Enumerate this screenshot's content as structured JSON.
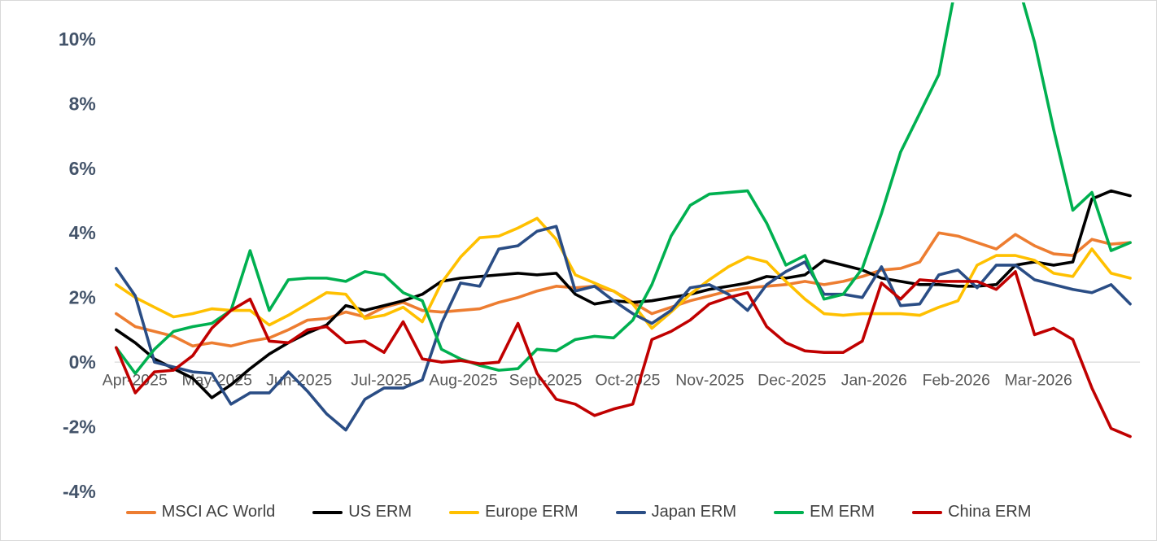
{
  "chart_data": {
    "type": "line",
    "title": "",
    "xlabel": "",
    "ylabel": "",
    "y_tick_labels": [
      "10%",
      "8%",
      "6%",
      "4%",
      "2%",
      "0%",
      "-2%",
      "-4%"
    ],
    "y_tick_values": [
      10,
      8,
      6,
      4,
      2,
      0,
      -2,
      -4
    ],
    "ylim": [
      -4,
      10
    ],
    "y_unit": "percent",
    "x_tick_labels": [
      "Apr-2025",
      "May-2025",
      "Jun-2025",
      "Jul-2025",
      "Aug-2025",
      "Sept-2025",
      "Oct-2025",
      "Nov-2025",
      "Dec-2025",
      "Jan-2026",
      "Feb-2026",
      "Mar-2026"
    ],
    "gridlines": "horizontal zero-axis line only",
    "legend_position": "bottom",
    "points_per_series": 54,
    "x_sampling": "54 evenly spaced points (approx. weekly) spanning Apr-2025 through end of Mar-2026",
    "clipping_note": "EM ERM exceeds the 10% plot top (clipped) from mid-Jan-2026 to early-Mar-2026; values of 12 denote off-chart",
    "series": [
      {
        "name": "MSCI AC World",
        "color": "#ED7D31",
        "values": [
          1.5,
          1.1,
          0.95,
          0.8,
          0.5,
          0.6,
          0.5,
          0.65,
          0.75,
          1.0,
          1.3,
          1.35,
          1.55,
          1.4,
          1.7,
          1.85,
          1.6,
          1.55,
          1.6,
          1.65,
          1.85,
          2.0,
          2.2,
          2.35,
          2.3,
          2.35,
          2.2,
          1.85,
          1.5,
          1.7,
          1.9,
          2.05,
          2.2,
          2.3,
          2.35,
          2.4,
          2.5,
          2.4,
          2.5,
          2.65,
          2.85,
          2.9,
          3.1,
          4.0,
          3.9,
          3.7,
          3.5,
          3.95,
          3.6,
          3.35,
          3.3,
          3.8,
          3.65,
          3.7
        ]
      },
      {
        "name": "US ERM",
        "color": "#000000",
        "values": [
          1.0,
          0.6,
          0.1,
          -0.2,
          -0.5,
          -1.1,
          -0.7,
          -0.2,
          0.25,
          0.6,
          0.9,
          1.15,
          1.75,
          1.6,
          1.75,
          1.9,
          2.1,
          2.5,
          2.6,
          2.65,
          2.7,
          2.75,
          2.7,
          2.75,
          2.1,
          1.8,
          1.9,
          1.85,
          1.9,
          2.0,
          2.1,
          2.25,
          2.35,
          2.45,
          2.65,
          2.6,
          2.7,
          3.15,
          3.0,
          2.85,
          2.6,
          2.5,
          2.4,
          2.4,
          2.35,
          2.35,
          2.4,
          3.0,
          3.1,
          3.0,
          3.1,
          5.05,
          5.3,
          5.15
        ]
      },
      {
        "name": "Europe ERM",
        "color": "#FFC000",
        "values": [
          2.4,
          2.0,
          1.7,
          1.4,
          1.5,
          1.65,
          1.6,
          1.6,
          1.15,
          1.45,
          1.8,
          2.15,
          2.1,
          1.35,
          1.45,
          1.7,
          1.25,
          2.45,
          3.25,
          3.85,
          3.9,
          4.15,
          4.45,
          3.8,
          2.7,
          2.45,
          2.2,
          1.8,
          1.05,
          1.55,
          2.1,
          2.55,
          2.95,
          3.25,
          3.1,
          2.5,
          1.95,
          1.5,
          1.45,
          1.5,
          1.5,
          1.5,
          1.45,
          1.7,
          1.9,
          3.0,
          3.3,
          3.3,
          3.15,
          2.75,
          2.65,
          3.5,
          2.75,
          2.6
        ]
      },
      {
        "name": "Japan ERM",
        "color": "#2A4D85",
        "values": [
          2.9,
          2.05,
          0.0,
          -0.15,
          -0.3,
          -0.35,
          -1.3,
          -0.95,
          -0.95,
          -0.3,
          -0.9,
          -1.6,
          -2.1,
          -1.15,
          -0.8,
          -0.8,
          -0.55,
          1.2,
          2.45,
          2.35,
          3.5,
          3.6,
          4.05,
          4.2,
          2.2,
          2.35,
          1.9,
          1.5,
          1.2,
          1.6,
          2.3,
          2.4,
          2.1,
          1.6,
          2.4,
          2.8,
          3.1,
          2.1,
          2.1,
          2.0,
          2.95,
          1.75,
          1.8,
          2.7,
          2.85,
          2.3,
          3.0,
          3.0,
          2.55,
          2.4,
          2.25,
          2.15,
          2.4,
          1.8
        ]
      },
      {
        "name": "EM ERM",
        "color": "#00B050",
        "values": [
          0.45,
          -0.35,
          0.4,
          0.95,
          1.1,
          1.2,
          1.6,
          3.45,
          1.6,
          2.55,
          2.6,
          2.6,
          2.5,
          2.8,
          2.7,
          2.15,
          1.9,
          0.4,
          0.1,
          -0.1,
          -0.25,
          -0.2,
          0.4,
          0.35,
          0.7,
          0.8,
          0.75,
          1.3,
          2.4,
          3.9,
          4.85,
          5.2,
          5.25,
          5.3,
          4.3,
          3.0,
          3.3,
          1.95,
          2.1,
          2.9,
          4.6,
          6.5,
          7.7,
          8.9,
          12.0,
          12.0,
          12.0,
          12.0,
          9.9,
          7.2,
          4.7,
          5.25,
          3.45,
          3.7
        ]
      },
      {
        "name": "China ERM",
        "color": "#C00000",
        "values": [
          0.45,
          -0.95,
          -0.3,
          -0.25,
          0.2,
          1.05,
          1.6,
          1.95,
          0.65,
          0.6,
          1.0,
          1.1,
          0.6,
          0.65,
          0.3,
          1.25,
          0.1,
          0.0,
          0.05,
          -0.05,
          0.0,
          1.2,
          -0.35,
          -1.15,
          -1.3,
          -1.65,
          -1.45,
          -1.3,
          0.7,
          0.95,
          1.3,
          1.8,
          2.0,
          2.15,
          1.1,
          0.6,
          0.35,
          0.3,
          0.3,
          0.65,
          2.45,
          1.95,
          2.55,
          2.5,
          2.5,
          2.5,
          2.25,
          2.8,
          0.85,
          1.05,
          0.7,
          -0.8,
          -2.05,
          -2.3
        ]
      }
    ],
    "style": {
      "y_label_color": "#44546A",
      "x_label_color": "#595959",
      "legend_text_color": "#404040",
      "zero_line_color": "#D9D9D9",
      "background": "#FFFFFF",
      "line_width": 3.6
    }
  }
}
